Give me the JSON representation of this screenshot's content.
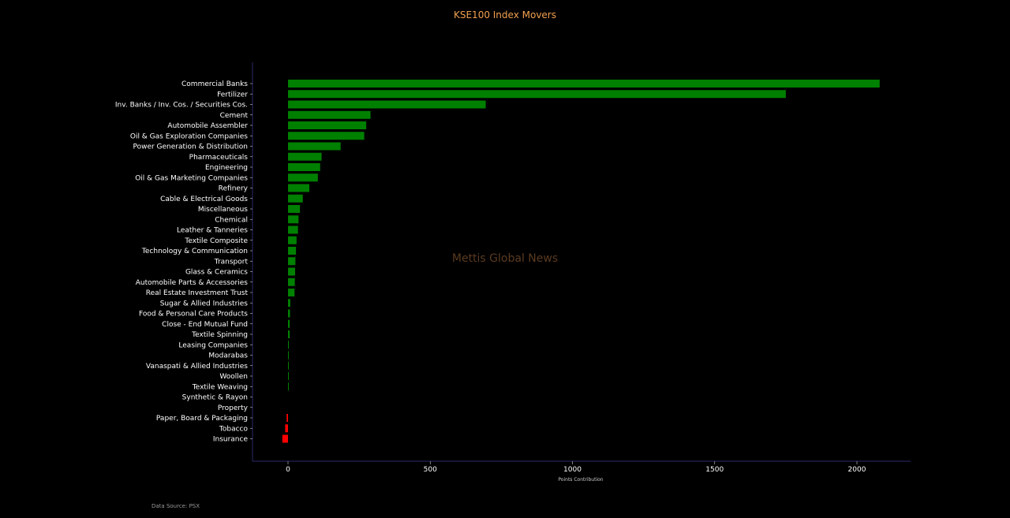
{
  "chart_data": {
    "type": "bar",
    "orientation": "horizontal",
    "title": "KSE100 Index Movers",
    "xlabel": "Points Contribution",
    "ylabel": "",
    "xlim": [
      -125,
      2190
    ],
    "xticks": [
      0,
      500,
      1000,
      1500,
      2000
    ],
    "watermark": "Mettis Global News",
    "source": "Data Source: PSX",
    "colors": {
      "positive": "#008000",
      "negative": "#ff0000",
      "title": "#f0a050",
      "axis": "#2a2a6a"
    },
    "categories": [
      "Commercial Banks",
      "Fertilizer",
      "Inv. Banks / Inv. Cos. / Securities Cos.",
      "Cement",
      "Automobile Assembler",
      "Oil & Gas Exploration Companies",
      "Power Generation & Distribution",
      "Pharmaceuticals",
      "Engineering",
      "Oil & Gas Marketing Companies",
      "Refinery",
      "Cable & Electrical Goods",
      "Miscellaneous",
      "Chemical",
      "Leather & Tanneries",
      "Textile Composite",
      "Technology & Communication",
      "Transport",
      "Glass & Ceramics",
      "Automobile Parts & Accessories",
      "Real Estate Investment Trust",
      "Sugar & Allied Industries",
      "Food & Personal Care Products",
      "Close - End Mutual Fund",
      "Textile Spinning",
      "Leasing Companies",
      "Modarabas",
      "Vanaspati & Allied Industries",
      "Woollen",
      "Textile Weaving",
      "Synthetic & Rayon",
      "Property",
      "Paper, Board & Packaging",
      "Tobacco",
      "Insurance"
    ],
    "values": [
      2080,
      1750,
      695,
      290,
      275,
      268,
      185,
      118,
      113,
      105,
      75,
      52,
      42,
      37,
      35,
      30,
      28,
      26,
      25,
      24,
      23,
      8,
      7,
      6,
      6,
      3,
      2,
      2,
      2,
      1.5,
      0,
      0,
      -5,
      -10,
      -20
    ]
  }
}
